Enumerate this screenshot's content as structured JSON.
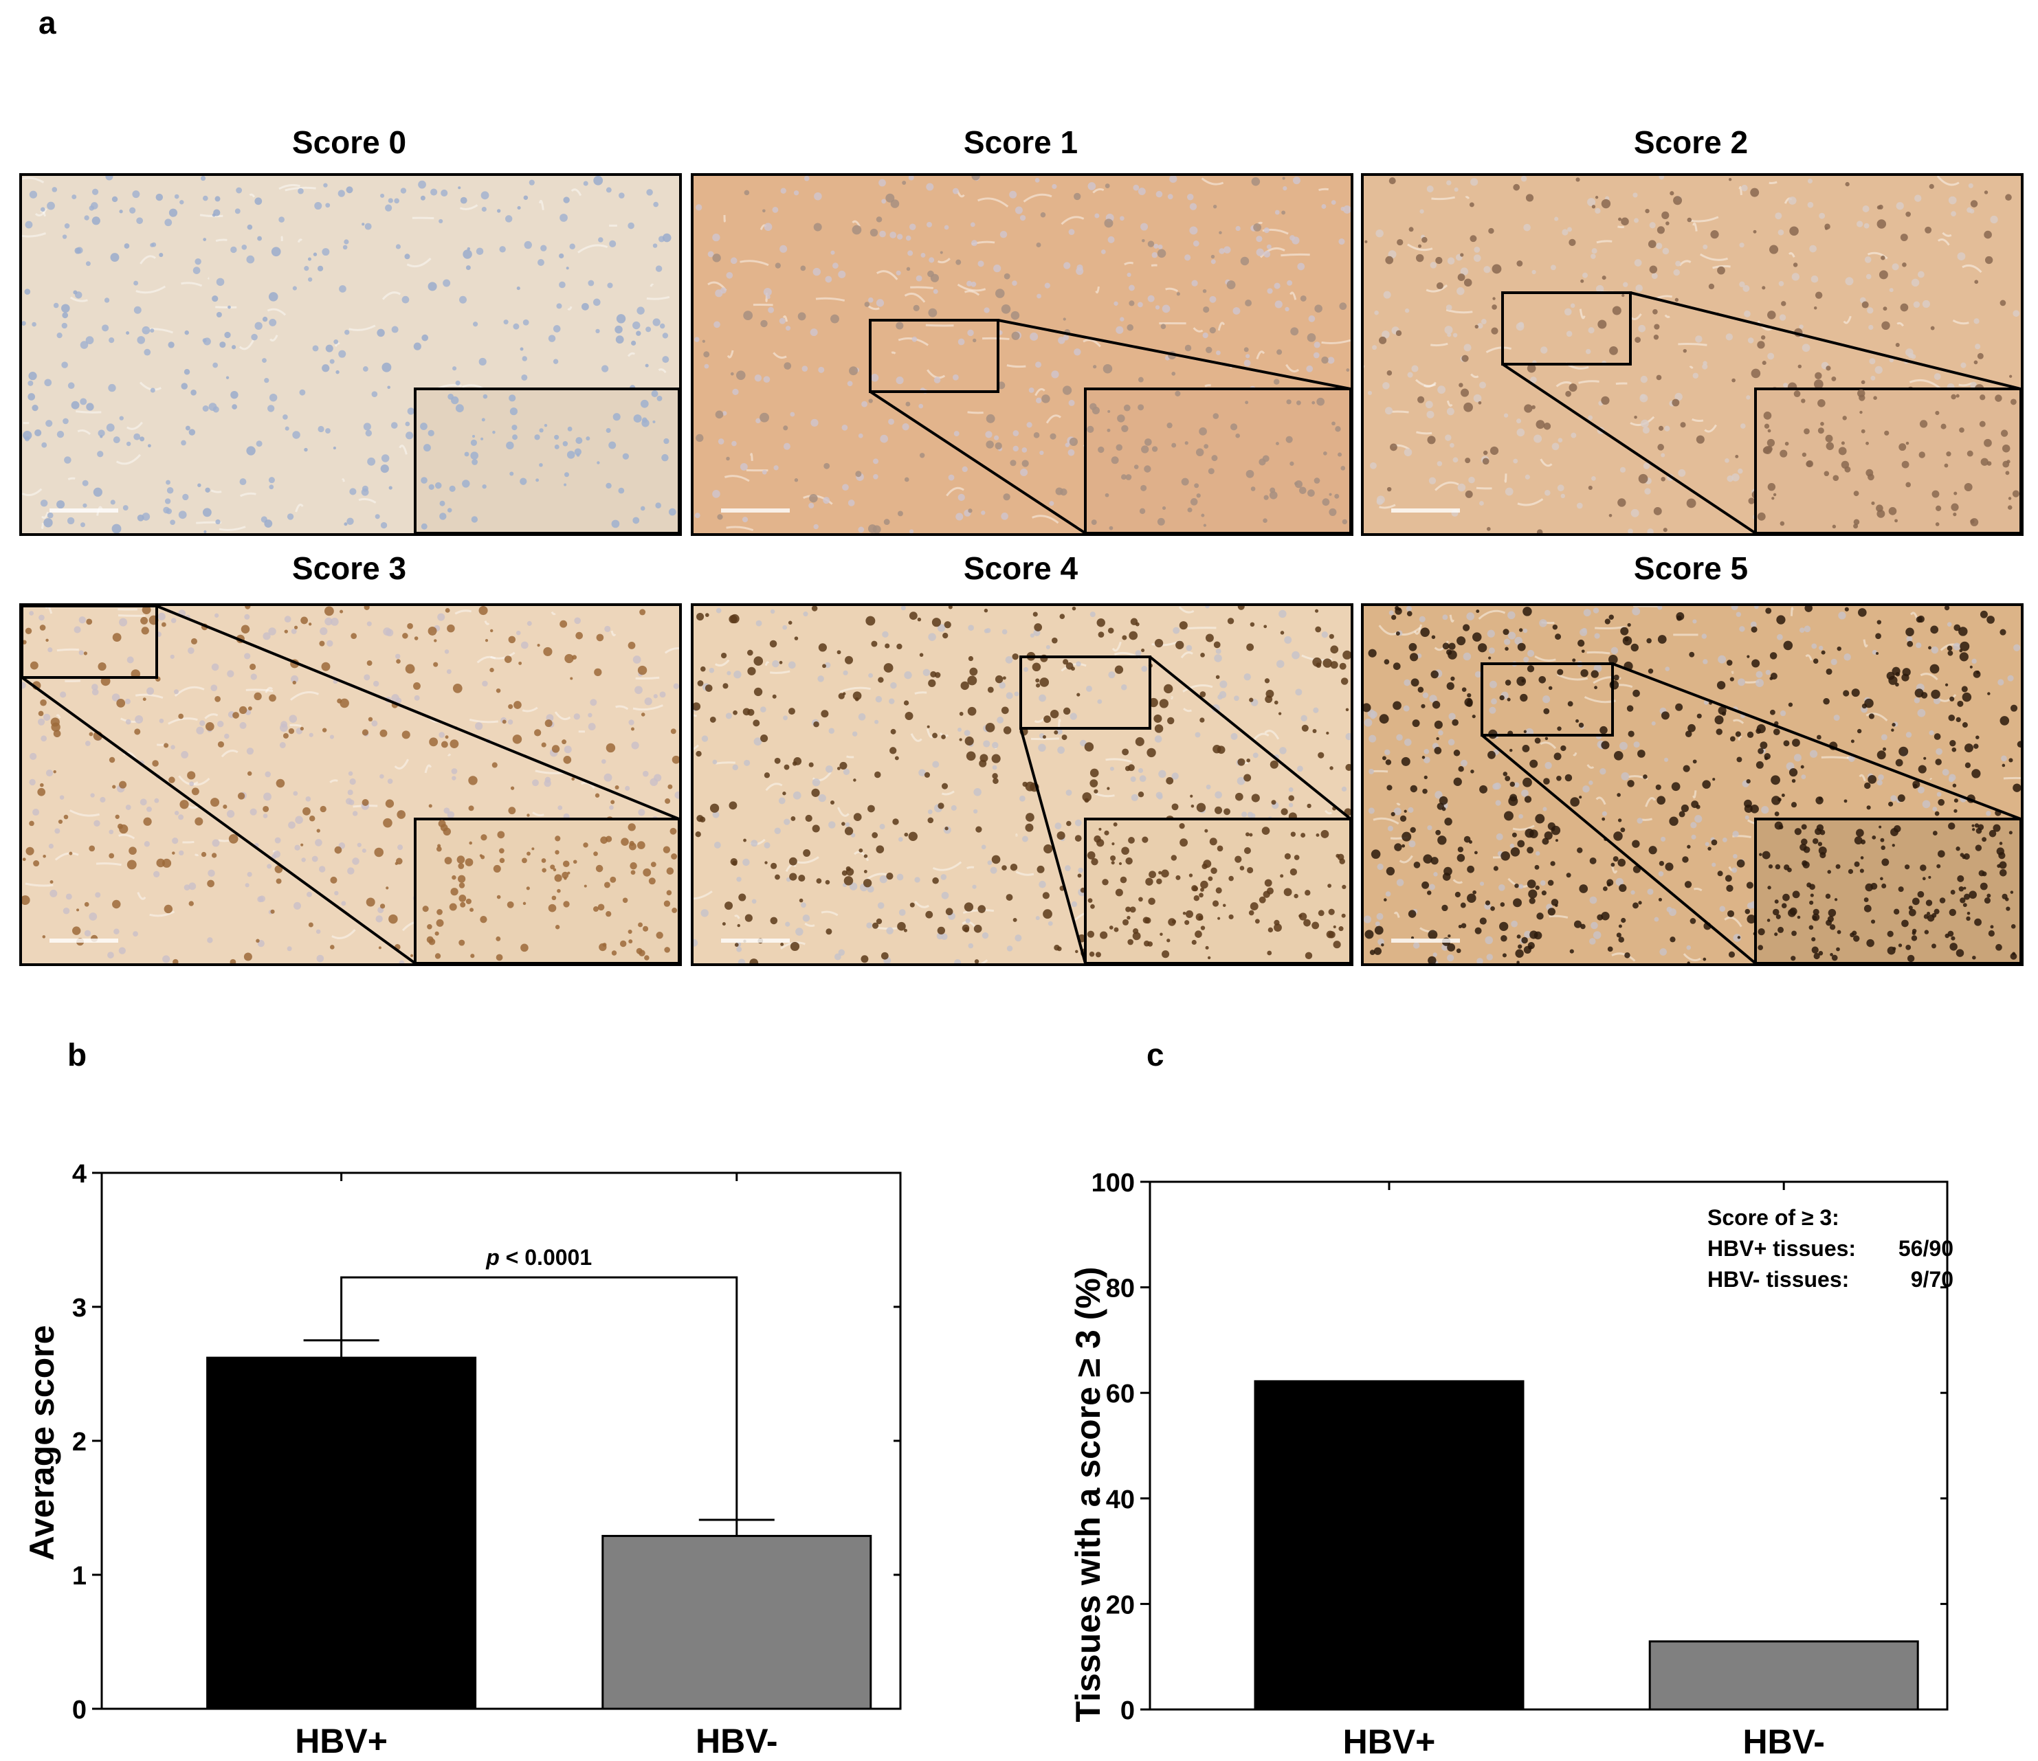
{
  "figure": {
    "panel_a_label": "a",
    "panel_b_label": "b",
    "panel_c_label": "c"
  },
  "micrographs": [
    {
      "title": "Score 0",
      "stain": "#e9dccb",
      "cell": "#9fb0cf",
      "dot": "#9aaccd",
      "dot_density": 0.1,
      "inset_color": "#e3d3bf"
    },
    {
      "title": "Score 1",
      "stain": "#e2b48c",
      "cell": "#cfc5cf",
      "dot": "#a78f80",
      "dot_density": 0.12,
      "inset_color": "#dfb08a"
    },
    {
      "title": "Score 2",
      "stain": "#e3bd98",
      "cell": "#d9cdc8",
      "dot": "#8a6850",
      "dot_density": 0.16,
      "inset_color": "#e0b995"
    },
    {
      "title": "Score 3",
      "stain": "#edd6bb",
      "cell": "#c9bfc9",
      "dot": "#9c6a3a",
      "dot_density": 0.22,
      "inset_color": "#ead2b4"
    },
    {
      "title": "Score 4",
      "stain": "#ecd3b5",
      "cell": "#c5c3cc",
      "dot": "#5c3a1a",
      "dot_density": 0.3,
      "inset_color": "#e9cfae"
    },
    {
      "title": "Score 5",
      "stain": "#dcb488",
      "cell": "#c9c3c8",
      "dot": "#2b1a0c",
      "dot_density": 0.45,
      "inset_color": "#c9a479"
    }
  ],
  "chart_data": [
    {
      "type": "bar",
      "title": "",
      "xlabel": "",
      "ylabel": "Average score",
      "categories": [
        "HBV+",
        "HBV-"
      ],
      "values": [
        2.62,
        1.29
      ],
      "errors": [
        0.13,
        0.12
      ],
      "colors": [
        "#000000",
        "#808080"
      ],
      "ylim": [
        0,
        4
      ],
      "yticks": [
        "0",
        "1",
        "2",
        "3",
        "4"
      ],
      "annotation": {
        "italic": "p",
        "text": " < 0.0001"
      }
    },
    {
      "type": "bar",
      "title": "",
      "xlabel": "",
      "ylabel": "Tissues with a score ≥ 3 (%)",
      "categories": [
        "HBV+",
        "HBV-"
      ],
      "values": [
        62.2,
        12.9
      ],
      "colors": [
        "#000000",
        "#808080"
      ],
      "ylim": [
        0,
        100
      ],
      "yticks": [
        "0",
        "20",
        "40",
        "60",
        "80",
        "100"
      ],
      "legend_lines": [
        {
          "label": "Score of ≥ 3:",
          "value": ""
        },
        {
          "label": "HBV+ tissues:",
          "value": "56/90"
        },
        {
          "label": "HBV- tissues:",
          "value": "9/70"
        }
      ]
    }
  ]
}
